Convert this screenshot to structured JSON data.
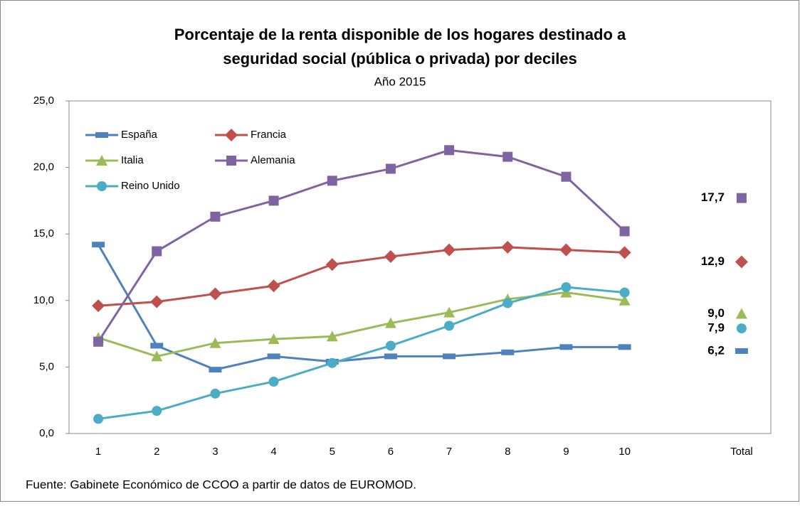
{
  "chart_data": {
    "type": "line",
    "title": [
      "Porcentaje de la renta disponible de los hogares destinado a",
      "seguridad social (pública o privada) por deciles"
    ],
    "subtitle": "Año 2015",
    "source": "Fuente:  Gabinete Económico de CCOO a partir de datos de EUROMOD.",
    "categories": [
      "1",
      "2",
      "3",
      "4",
      "5",
      "6",
      "7",
      "8",
      "9",
      "10",
      null,
      "Total"
    ],
    "ylim": [
      0,
      25
    ],
    "yticks": [
      {
        "value": 0,
        "label": "0,0"
      },
      {
        "value": 5,
        "label": "5,0"
      },
      {
        "value": 10,
        "label": "10,0"
      },
      {
        "value": 15,
        "label": "15,0"
      },
      {
        "value": 20,
        "label": "20,0"
      },
      {
        "value": 25,
        "label": "25,0"
      }
    ],
    "legend": "top-left",
    "series": [
      {
        "name": "España",
        "color": "#4f81bd",
        "marker": "dash",
        "values": [
          14.2,
          6.6,
          4.8,
          5.8,
          5.4,
          5.8,
          5.8,
          6.1,
          6.5,
          6.5,
          null,
          6.2
        ],
        "value_labels": [
          null,
          null,
          null,
          null,
          null,
          null,
          null,
          null,
          null,
          null,
          null,
          "6,2"
        ]
      },
      {
        "name": "Francia",
        "color": "#c0504d",
        "marker": "diamond",
        "values": [
          9.6,
          9.9,
          10.5,
          11.1,
          12.7,
          13.3,
          13.8,
          14.0,
          13.8,
          13.6,
          null,
          12.9
        ],
        "value_labels": [
          null,
          null,
          null,
          null,
          null,
          null,
          null,
          null,
          null,
          null,
          null,
          "12,9"
        ]
      },
      {
        "name": "Italia",
        "color": "#9bbb59",
        "marker": "triangle",
        "values": [
          7.2,
          5.8,
          6.8,
          7.1,
          7.3,
          8.3,
          9.1,
          10.1,
          10.6,
          10.0,
          null,
          9.0
        ],
        "value_labels": [
          null,
          null,
          null,
          null,
          null,
          null,
          null,
          null,
          null,
          null,
          null,
          "9,0"
        ]
      },
      {
        "name": "Alemania",
        "color": "#8064a2",
        "marker": "square",
        "values": [
          6.9,
          13.7,
          16.3,
          17.5,
          19.0,
          19.9,
          21.3,
          20.8,
          19.3,
          15.2,
          null,
          17.7
        ],
        "value_labels": [
          null,
          null,
          null,
          null,
          null,
          null,
          null,
          null,
          null,
          null,
          null,
          "17,7"
        ]
      },
      {
        "name": "Reino Unido",
        "color": "#4bacc6",
        "marker": "circle",
        "values": [
          1.1,
          1.7,
          3.0,
          3.9,
          5.3,
          6.6,
          8.1,
          9.8,
          11.0,
          10.6,
          null,
          7.9
        ],
        "value_labels": [
          null,
          null,
          null,
          null,
          null,
          null,
          null,
          null,
          null,
          null,
          null,
          "7,9"
        ]
      }
    ]
  }
}
